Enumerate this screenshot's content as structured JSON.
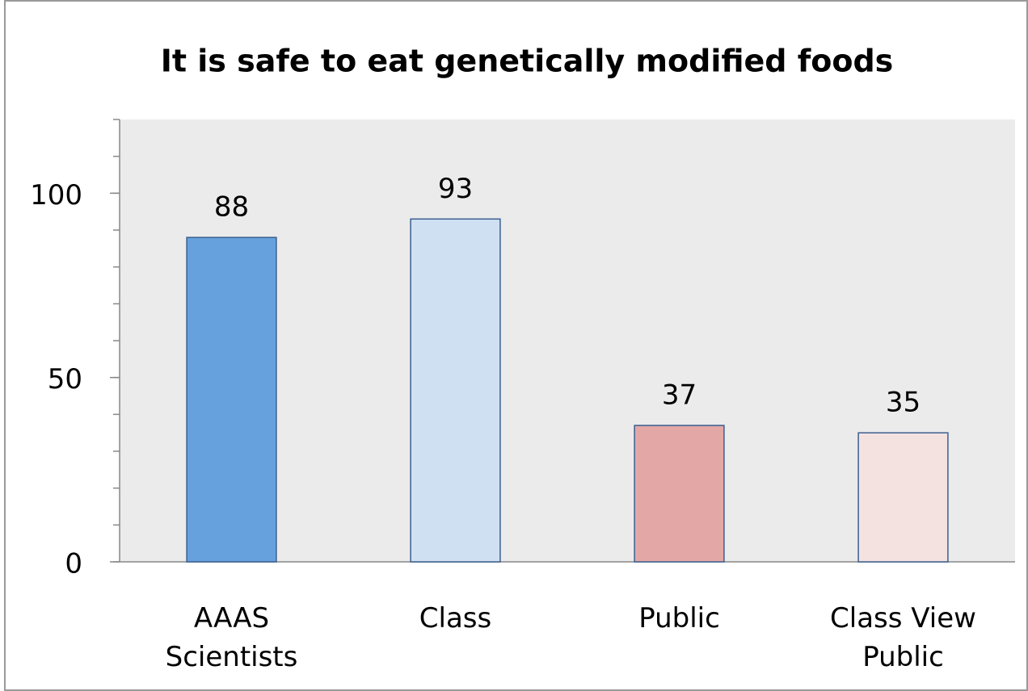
{
  "chart_data": {
    "type": "bar",
    "title": "It is safe to eat genetically modified foods",
    "categories": [
      "AAAS\nScientists",
      "Class",
      "Public",
      "Class View\nPublic"
    ],
    "values": [
      88,
      93,
      37,
      35
    ],
    "colors": [
      "#66a1de",
      "#cfe0f2",
      "#e3a8a6",
      "#f4e2e1"
    ],
    "ylim": [
      0,
      120
    ],
    "yticks": [
      0,
      50,
      100
    ],
    "yminorticks": [
      0,
      10,
      20,
      30,
      40,
      50,
      60,
      70,
      80,
      90,
      100,
      110,
      120
    ]
  }
}
